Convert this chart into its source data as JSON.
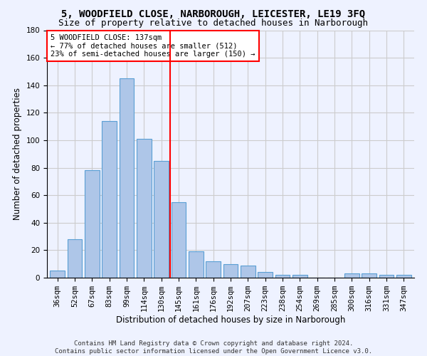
{
  "title1": "5, WOODFIELD CLOSE, NARBOROUGH, LEICESTER, LE19 3FQ",
  "title2": "Size of property relative to detached houses in Narborough",
  "xlabel": "Distribution of detached houses by size in Narborough",
  "ylabel": "Number of detached properties",
  "footnote1": "Contains HM Land Registry data © Crown copyright and database right 2024.",
  "footnote2": "Contains public sector information licensed under the Open Government Licence v3.0.",
  "bar_labels": [
    "36sqm",
    "52sqm",
    "67sqm",
    "83sqm",
    "99sqm",
    "114sqm",
    "130sqm",
    "145sqm",
    "161sqm",
    "176sqm",
    "192sqm",
    "207sqm",
    "223sqm",
    "238sqm",
    "254sqm",
    "269sqm",
    "285sqm",
    "300sqm",
    "316sqm",
    "331sqm",
    "347sqm"
  ],
  "bar_values": [
    5,
    28,
    78,
    114,
    145,
    101,
    85,
    55,
    19,
    12,
    10,
    9,
    4,
    2,
    2,
    0,
    0,
    3,
    3,
    2,
    2
  ],
  "bar_color": "#aec6e8",
  "bar_edge_color": "#5a9fd4",
  "marker_label": "5 WOODFIELD CLOSE: 137sqm",
  "marker_line_color": "red",
  "annotation_line1": "← 77% of detached houses are smaller (512)",
  "annotation_line2": "23% of semi-detached houses are larger (150) →",
  "annotation_box_color": "white",
  "annotation_box_edge_color": "red",
  "ylim": [
    0,
    180
  ],
  "yticks": [
    0,
    20,
    40,
    60,
    80,
    100,
    120,
    140,
    160,
    180
  ],
  "grid_color": "#cccccc",
  "background_color": "#eef2ff",
  "title1_fontsize": 10,
  "title2_fontsize": 9,
  "axis_label_fontsize": 8.5,
  "tick_fontsize": 7.5,
  "footnote_fontsize": 6.5
}
